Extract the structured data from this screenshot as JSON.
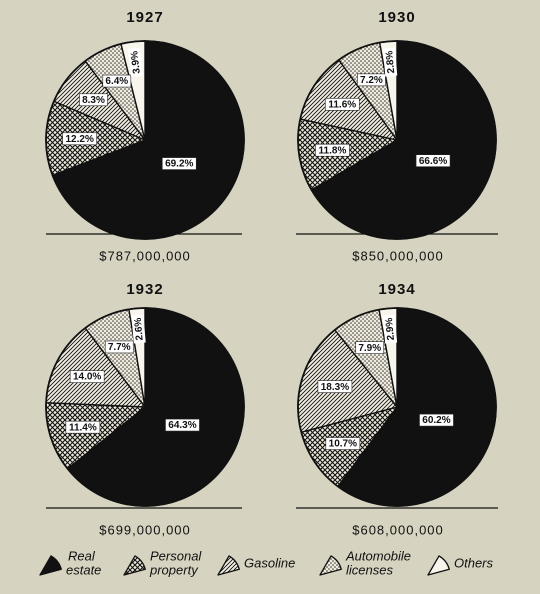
{
  "colors": {
    "background": "#d7d3c1",
    "ink": "#111111"
  },
  "chart_data": [
    {
      "type": "pie",
      "title": "1927",
      "total": "$787,000,000",
      "categories": [
        "Real estate",
        "Personal property",
        "Gasoline",
        "Automobile licenses",
        "Others"
      ],
      "values": [
        69.2,
        12.2,
        8.3,
        6.4,
        3.9
      ],
      "labels": [
        "69.2%",
        "12.2%",
        "8.3%",
        "6.4%",
        "3.9%"
      ]
    },
    {
      "type": "pie",
      "title": "1930",
      "total": "$850,000,000",
      "categories": [
        "Real estate",
        "Personal property",
        "Gasoline",
        "Automobile licenses",
        "Others"
      ],
      "values": [
        66.6,
        11.8,
        11.6,
        7.2,
        2.8
      ],
      "labels": [
        "66.6%",
        "11.8%",
        "11.6%",
        "7.2%",
        "2.8%"
      ]
    },
    {
      "type": "pie",
      "title": "1932",
      "total": "$699,000,000",
      "categories": [
        "Real estate",
        "Personal property",
        "Gasoline",
        "Automobile licenses",
        "Others"
      ],
      "values": [
        64.3,
        11.4,
        14.0,
        7.7,
        2.6
      ],
      "labels": [
        "64.3%",
        "11.4%",
        "14.0%",
        "7.7%",
        "2.6%"
      ]
    },
    {
      "type": "pie",
      "title": "1934",
      "total": "$608,000,000",
      "categories": [
        "Real estate",
        "Personal property",
        "Gasoline",
        "Automobile licenses",
        "Others"
      ],
      "values": [
        60.2,
        10.7,
        18.3,
        7.9,
        2.9
      ],
      "labels": [
        "60.2%",
        "10.7%",
        "18.3%",
        "7.9%",
        "2.9%"
      ]
    }
  ],
  "legend": [
    {
      "lines": [
        "Real",
        "estate"
      ],
      "pattern": "solid-black"
    },
    {
      "lines": [
        "Personal",
        "property"
      ],
      "pattern": "crosshatch"
    },
    {
      "lines": [
        "Gasoline"
      ],
      "pattern": "diagonal-lines"
    },
    {
      "lines": [
        "Automobile",
        "licenses"
      ],
      "pattern": "dots"
    },
    {
      "lines": [
        "Others"
      ],
      "pattern": "white"
    }
  ]
}
